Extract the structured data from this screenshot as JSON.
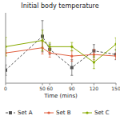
{
  "chart_data": {
    "type": "line",
    "title": "Initial body temperature",
    "x_label": "Time (mins)",
    "x": [
      0,
      50,
      60,
      90,
      120,
      150
    ],
    "xlim": [
      0,
      150
    ],
    "xticks": [
      0,
      50,
      60,
      90,
      120,
      150
    ],
    "ylim": [
      36.2,
      37.55
    ],
    "yticks": [],
    "tick_labels": "x",
    "grid": false,
    "legend": "bottom",
    "series": [
      {
        "name": "Set A",
        "color": "#555555",
        "line_style": "dashed",
        "marker": "square",
        "values": [
          36.45,
          37.1,
          36.85,
          36.5,
          36.82,
          36.75
        ],
        "yerr": [
          0.1,
          0.3,
          0.1,
          0.15,
          0.12,
          0.1
        ]
      },
      {
        "name": "Set B",
        "color": "#e06040",
        "line_style": "solid",
        "marker": "circle",
        "values": [
          36.78,
          36.88,
          36.78,
          36.72,
          36.75,
          36.72
        ],
        "yerr": [
          0.05,
          0.12,
          0.08,
          0.1,
          0.1,
          0.06
        ]
      },
      {
        "name": "Set C",
        "color": "#88aa00",
        "line_style": "solid",
        "marker": "circle",
        "values": [
          36.9,
          37.02,
          36.9,
          36.9,
          36.6,
          36.95
        ],
        "yerr": [
          0.18,
          0.2,
          0.08,
          0.08,
          0.12,
          0.12
        ]
      }
    ]
  }
}
